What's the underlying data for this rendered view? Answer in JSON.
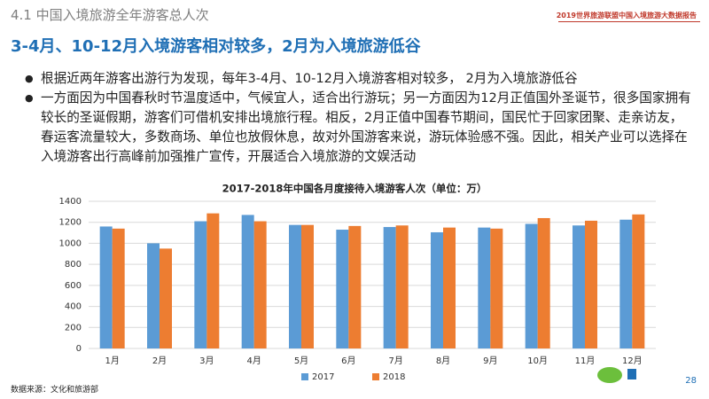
{
  "header": {
    "section": "4.1 中国入境旅游全年游客总人次",
    "report": "2019世界旅游联盟中国入境旅游大数据报告",
    "headline": "3-4月、10-12月入境游客相对较多，2月为入境旅游低谷"
  },
  "bullets": [
    "根据近两年游客出游行为发现，每年3-4月、10-12月入境游客相对较多， 2月为入境旅游低谷",
    "一方面因为中国春秋时节温度适中，气候宜人，适合出行游玩；另一方面因为12月正值国外圣诞节，很多国家拥有较长的圣诞假期，游客们可借机安排出境旅行程。相反，2月正值中国春节期间，国民忙于回家团聚、走亲访友，春运客流量较大，多数商场、单位也放假休息，故对外国游客来说，游玩体验感不强。因此，相关产业可以选择在入境游客出行高峰前加强推广宣传，开展适合入境旅游的文娱活动"
  ],
  "chart_data": {
    "type": "bar",
    "title": "2017-2018年中国各月度接待入境游客人次（单位：万）",
    "categories": [
      "1月",
      "2月",
      "3月",
      "4月",
      "5月",
      "6月",
      "7月",
      "8月",
      "9月",
      "10月",
      "11月",
      "12月"
    ],
    "series": [
      {
        "name": "2017",
        "color": "#5b9bd5",
        "values": [
          1160,
          1000,
          1210,
          1270,
          1175,
          1130,
          1155,
          1105,
          1150,
          1185,
          1170,
          1225
        ]
      },
      {
        "name": "2018",
        "color": "#ed7d31",
        "values": [
          1140,
          950,
          1285,
          1210,
          1175,
          1165,
          1170,
          1150,
          1140,
          1240,
          1215,
          1275
        ]
      }
    ],
    "ylim": [
      0,
      1400
    ],
    "yticks": [
      0,
      200,
      400,
      600,
      800,
      1000,
      1200,
      1400
    ],
    "grid": true,
    "legend": "bottom"
  },
  "footer": {
    "source": "数据来源：文化和旅游部",
    "page": "28"
  }
}
